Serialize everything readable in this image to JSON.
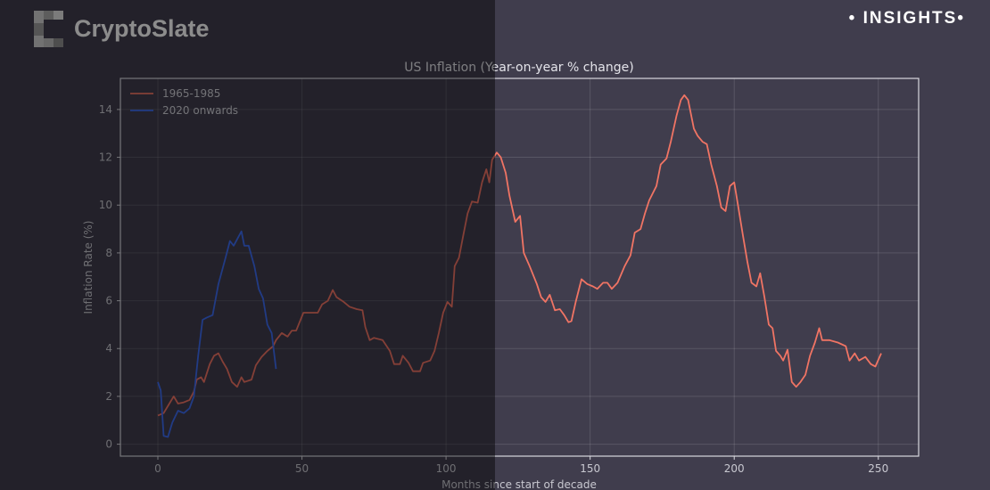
{
  "brand": {
    "name": "CryptoSlate",
    "tag": "INSIGHTS",
    "tag_bullet": "•"
  },
  "colors": {
    "background": "#403d4d",
    "series_1965": "#f07464",
    "series_2020": "#3d6cf2"
  },
  "chart_data": {
    "type": "line",
    "title": "US Inflation (Year-on-year % change)",
    "xlabel": "Months since start of decade",
    "ylabel": "Inflation Rate (%)",
    "xlim": [
      -13,
      264
    ],
    "ylim": [
      -0.5,
      15.3
    ],
    "xticks": [
      0,
      50,
      100,
      150,
      200,
      250
    ],
    "yticks": [
      0,
      2,
      4,
      6,
      8,
      10,
      12,
      14
    ],
    "grid": true,
    "legend": "top-left",
    "series": [
      {
        "name": "1965-1985",
        "color": "#f07464",
        "x": [
          0,
          2,
          4,
          5.5,
          7,
          9,
          11,
          12.5,
          13.5,
          15,
          16,
          18,
          19.5,
          21,
          22.5,
          24,
          25.7,
          27.5,
          29,
          30,
          32.5,
          34,
          36,
          38,
          40,
          41,
          43,
          45,
          46.5,
          48,
          50.5,
          53.5,
          55.5,
          57,
          59,
          60.7,
          62,
          64.5,
          66.5,
          69,
          71,
          72,
          73.5,
          75,
          78,
          80.5,
          82,
          84,
          85,
          87,
          88.5,
          91,
          92,
          94.5,
          96,
          97.5,
          99,
          100.5,
          102,
          103,
          104.5,
          106,
          107.5,
          109,
          111,
          112.5,
          114,
          115,
          116,
          117.6,
          119,
          120.7,
          122,
          124,
          125.7,
          127,
          129,
          131.5,
          133,
          134.5,
          136,
          137.8,
          139.5,
          141,
          142.5,
          143.5,
          145,
          147,
          149,
          151,
          152.5,
          154.5,
          156,
          157.5,
          159.5,
          162,
          164,
          165.5,
          167.5,
          169,
          170.5,
          173,
          174.5,
          176.5,
          178,
          180,
          181.5,
          182.7,
          184,
          186,
          187.3,
          189,
          190.5,
          192,
          194,
          195.5,
          197,
          198.5,
          200,
          201.5,
          203,
          204.6,
          206,
          207.7,
          209,
          210.5,
          212,
          213.3,
          214.5,
          216,
          217,
          218.5,
          220,
          221.5,
          223,
          224.7,
          226.3,
          228,
          229.5,
          230.5,
          233,
          236,
          238.7,
          240,
          241.8,
          243.3,
          245.5,
          247.4,
          249,
          251
        ],
        "y": [
          1.2,
          1.3,
          1.7,
          2.0,
          1.7,
          1.75,
          1.85,
          2.2,
          2.7,
          2.8,
          2.6,
          3.35,
          3.7,
          3.8,
          3.45,
          3.15,
          2.6,
          2.4,
          2.8,
          2.6,
          2.7,
          3.3,
          3.65,
          3.9,
          4.1,
          4.35,
          4.65,
          4.5,
          4.75,
          4.75,
          5.5,
          5.5,
          5.5,
          5.85,
          6.0,
          6.45,
          6.15,
          5.95,
          5.75,
          5.65,
          5.6,
          4.9,
          4.35,
          4.45,
          4.35,
          3.9,
          3.35,
          3.35,
          3.7,
          3.4,
          3.05,
          3.05,
          3.4,
          3.5,
          3.9,
          4.65,
          5.5,
          5.95,
          5.75,
          7.45,
          7.8,
          8.75,
          9.65,
          10.15,
          10.1,
          10.95,
          11.5,
          10.95,
          11.9,
          12.2,
          12.0,
          11.35,
          10.4,
          9.3,
          9.55,
          8.0,
          7.45,
          6.7,
          6.15,
          5.95,
          6.25,
          5.6,
          5.65,
          5.4,
          5.1,
          5.15,
          5.95,
          6.9,
          6.7,
          6.6,
          6.5,
          6.75,
          6.75,
          6.5,
          6.75,
          7.45,
          7.9,
          8.85,
          9.0,
          9.65,
          10.2,
          10.8,
          11.7,
          11.95,
          12.65,
          13.75,
          14.4,
          14.6,
          14.4,
          13.2,
          12.9,
          12.65,
          12.55,
          11.7,
          10.8,
          9.9,
          9.75,
          10.8,
          10.95,
          9.85,
          8.75,
          7.6,
          6.75,
          6.6,
          7.15,
          6.15,
          5.0,
          4.85,
          3.9,
          3.7,
          3.5,
          3.95,
          2.6,
          2.4,
          2.6,
          2.9,
          3.7,
          4.25,
          4.85,
          4.35,
          4.35,
          4.25,
          4.1,
          3.5,
          3.8,
          3.5,
          3.65,
          3.35,
          3.25,
          3.8
        ]
      },
      {
        "name": "2020 onwards",
        "color": "#3d6cf2",
        "x": [
          0,
          1,
          2,
          3.5,
          5,
          7,
          9,
          11,
          12.5,
          14,
          15.5,
          17,
          19,
          21,
          23.5,
          25,
          26.3,
          29,
          30,
          31.5,
          33.5,
          35,
          36.5,
          38,
          39.5,
          41
        ],
        "y": [
          2.6,
          2.25,
          0.35,
          0.3,
          0.9,
          1.4,
          1.3,
          1.5,
          2.0,
          3.7,
          5.2,
          5.3,
          5.4,
          6.7,
          7.8,
          8.5,
          8.3,
          8.9,
          8.3,
          8.3,
          7.45,
          6.5,
          6.1,
          5.0,
          4.65,
          3.15
        ]
      }
    ]
  }
}
